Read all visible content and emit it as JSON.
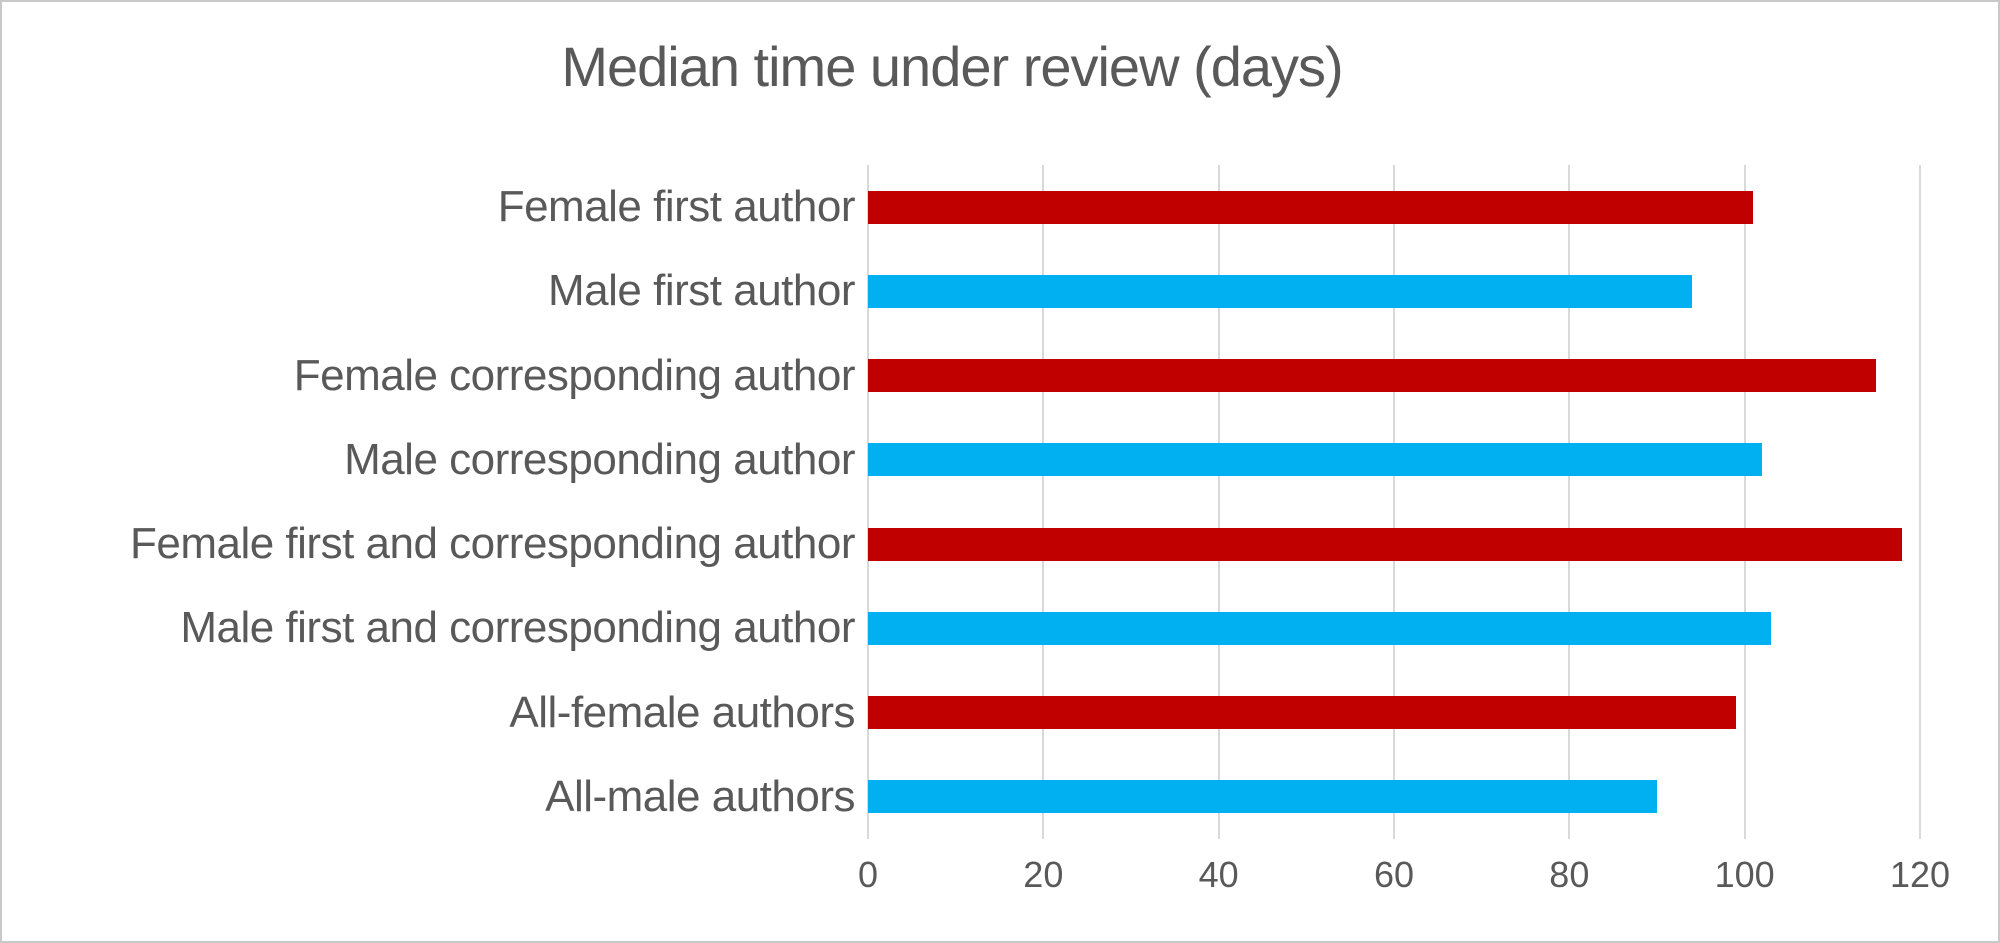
{
  "chart_data": {
    "type": "bar",
    "orientation": "horizontal",
    "title": "Median time under review (days)",
    "categories": [
      "Female first author",
      "Male first author",
      "Female corresponding author",
      "Male corresponding author",
      "Female first and corresponding author",
      "Male first and corresponding author",
      "All-female authors",
      "All-male authors"
    ],
    "values": [
      101,
      94,
      115,
      102,
      118,
      103,
      99,
      90
    ],
    "bar_colors": [
      "#C00000",
      "#00B0F0",
      "#C00000",
      "#00B0F0",
      "#C00000",
      "#00B0F0",
      "#C00000",
      "#00B0F0"
    ],
    "color_meaning": {
      "female_bars": "#C00000",
      "male_bars": "#00B0F0"
    },
    "xlabel": "",
    "ylabel": "",
    "xlim": [
      0,
      120
    ],
    "xticks": [
      0,
      20,
      40,
      60,
      80,
      100,
      120
    ],
    "grid": true,
    "legend": false,
    "text_color": "#595959",
    "gridline_color": "#D9D9D9",
    "background": "#FFFFFF"
  }
}
